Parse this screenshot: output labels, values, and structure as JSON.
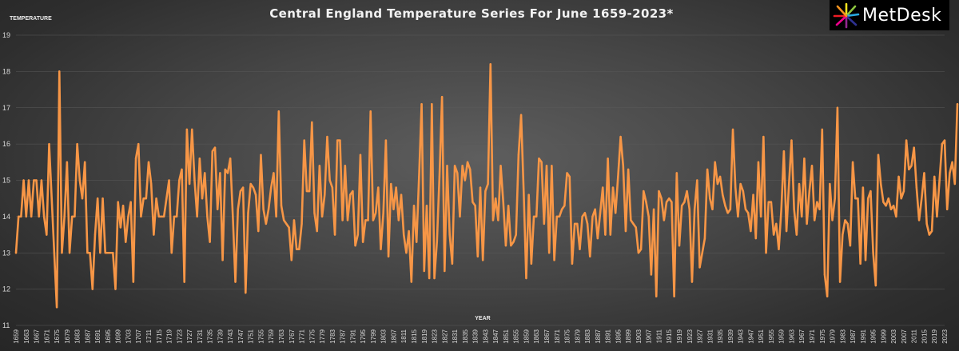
{
  "logo": {
    "text": "MetDesk"
  },
  "colors": {
    "series": "#f79646"
  },
  "chart_data": {
    "type": "line",
    "title": "Central England Temperature Series For June 1659-2023*",
    "xlabel": "YEAR",
    "ylabel": "TEMPERATURE",
    "ylim": [
      11,
      19
    ],
    "yticks": [
      11,
      12,
      13,
      14,
      15,
      16,
      17,
      18,
      19
    ],
    "x_start": 1659,
    "x_end": 2023,
    "xtick_labels": [
      1659,
      1663,
      1667,
      1671,
      1675,
      1679,
      1683,
      1687,
      1691,
      1695,
      1699,
      1703,
      1707,
      1711,
      1715,
      1719,
      1723,
      1727,
      1731,
      1735,
      1739,
      1743,
      1747,
      1751,
      1755,
      1759,
      1763,
      1767,
      1771,
      1775,
      1779,
      1783,
      1787,
      1791,
      1795,
      1799,
      1803,
      1807,
      1811,
      1815,
      1819,
      1823,
      1827,
      1831,
      1835,
      1839,
      1843,
      1847,
      1851,
      1855,
      1859,
      1863,
      1867,
      1871,
      1875,
      1879,
      1883,
      1887,
      1891,
      1895,
      1899,
      1903,
      1907,
      1911,
      1915,
      1919,
      1923,
      1927,
      1931,
      1935,
      1939,
      1943,
      1947,
      1951,
      1955,
      1959,
      1963,
      1967,
      1971,
      1975,
      1979,
      1983,
      1987,
      1991,
      1995,
      1999,
      2003,
      2007,
      2011,
      2015,
      2019,
      2023
    ],
    "grid": true,
    "legend": "none",
    "series": [
      {
        "values": [
          13.0,
          14.0,
          14.0,
          15.0,
          14.0,
          15.0,
          14.0,
          15.0,
          15.0,
          14.0,
          15.0,
          14.0,
          13.5,
          16.0,
          14.5,
          13.0,
          11.5,
          18.0,
          13.0,
          14.0,
          15.5,
          13.0,
          14.0,
          14.0,
          16.0,
          15.0,
          14.5,
          15.5,
          13.0,
          13.0,
          12.0,
          13.5,
          14.5,
          13.0,
          14.5,
          13.0,
          13.0,
          13.0,
          13.0,
          12.0,
          14.4,
          13.7,
          14.3,
          13.3,
          14.0,
          14.4,
          12.2,
          15.6,
          16.0,
          14.0,
          14.5,
          14.5,
          15.5,
          14.9,
          13.5,
          14.5,
          14.0,
          14.0,
          14.0,
          14.5,
          15.0,
          13.0,
          14.0,
          14.0,
          15.0,
          15.3,
          12.2,
          16.4,
          14.9,
          16.4,
          15.0,
          14.0,
          15.6,
          14.5,
          15.2,
          14.0,
          13.3,
          15.8,
          15.9,
          14.2,
          15.2,
          12.8,
          15.3,
          15.2,
          15.6,
          14.0,
          12.2,
          14.2,
          14.7,
          14.8,
          11.9,
          14.1,
          14.9,
          14.8,
          14.6,
          13.6,
          15.7,
          14.2,
          13.8,
          14.2,
          14.8,
          15.2,
          14.0,
          16.9,
          14.3,
          13.9,
          13.8,
          13.7,
          12.8,
          13.9,
          13.1,
          13.1,
          13.8,
          16.1,
          14.7,
          14.7,
          16.6,
          14.1,
          13.6,
          15.4,
          14.0,
          14.6,
          16.2,
          15.0,
          14.8,
          13.5,
          16.1,
          16.1,
          13.9,
          15.4,
          13.9,
          14.6,
          14.7,
          13.2,
          13.5,
          15.7,
          13.3,
          13.9,
          13.9,
          16.9,
          13.9,
          14.1,
          14.8,
          13.1,
          14.1,
          16.1,
          12.9,
          14.9,
          14.2,
          14.8,
          13.9,
          14.6,
          13.5,
          13.0,
          13.6,
          12.2,
          14.3,
          13.3,
          15.1,
          17.1,
          12.5,
          14.3,
          12.3,
          17.1,
          12.3,
          13.3,
          15.1,
          17.3,
          12.5,
          15.4,
          13.5,
          12.7,
          15.4,
          15.2,
          14.0,
          15.4,
          15.0,
          15.5,
          15.3,
          14.4,
          14.3,
          12.9,
          14.8,
          12.8,
          14.7,
          14.9,
          18.2,
          13.9,
          14.5,
          13.9,
          15.4,
          14.4,
          13.2,
          14.3,
          13.2,
          13.3,
          13.5,
          15.7,
          16.8,
          14.7,
          12.3,
          14.6,
          12.7,
          14.0,
          14.0,
          15.6,
          15.5,
          13.8,
          15.4,
          13.0,
          15.4,
          12.8,
          14.0,
          14.0,
          14.2,
          14.3,
          15.2,
          15.1,
          12.7,
          13.8,
          13.8,
          13.1,
          14.0,
          14.1,
          13.8,
          12.9,
          14.0,
          14.2,
          13.4,
          14.1,
          14.8,
          13.5,
          15.6,
          13.5,
          14.8,
          14.1,
          15.1,
          16.2,
          15.4,
          13.6,
          15.3,
          13.9,
          13.8,
          13.7,
          13.0,
          13.1,
          14.7,
          14.4,
          14.0,
          12.4,
          14.2,
          11.8,
          14.7,
          14.5,
          13.9,
          14.4,
          14.5,
          14.4,
          11.8,
          15.2,
          13.2,
          14.3,
          14.4,
          14.7,
          14.2,
          12.2,
          14.2,
          15.0,
          12.6,
          13.0,
          13.4,
          15.3,
          14.5,
          14.2,
          15.5,
          14.9,
          15.1,
          14.6,
          14.3,
          14.1,
          14.2,
          16.4,
          14.8,
          14.0,
          14.9,
          14.7,
          14.2,
          14.1,
          13.6,
          14.6,
          13.4,
          15.5,
          14.0,
          16.2,
          13.0,
          14.4,
          14.4,
          13.5,
          13.8,
          13.1,
          14.2,
          15.8,
          13.6,
          14.9,
          16.1,
          14.2,
          13.5,
          14.9,
          14.0,
          15.6,
          13.8,
          14.7,
          15.4,
          13.9,
          14.4,
          14.2,
          16.4,
          12.4,
          11.8,
          14.9,
          13.9,
          14.5,
          17.0,
          12.2,
          13.5,
          13.9,
          13.8,
          13.2,
          15.5,
          14.5,
          14.5,
          12.7,
          14.8,
          12.8,
          14.5,
          14.7,
          13.0,
          12.1,
          15.7,
          14.9,
          14.4,
          14.3,
          14.5,
          14.2,
          14.3,
          14.0,
          15.1,
          14.5,
          14.7,
          16.1,
          15.3,
          15.4,
          15.9,
          14.8,
          13.9,
          14.5,
          15.2,
          13.8,
          13.5,
          13.6,
          15.1,
          14.0,
          15.0,
          16.0,
          16.1,
          14.2,
          15.2,
          15.5,
          14.9,
          17.1
        ]
      }
    ]
  }
}
